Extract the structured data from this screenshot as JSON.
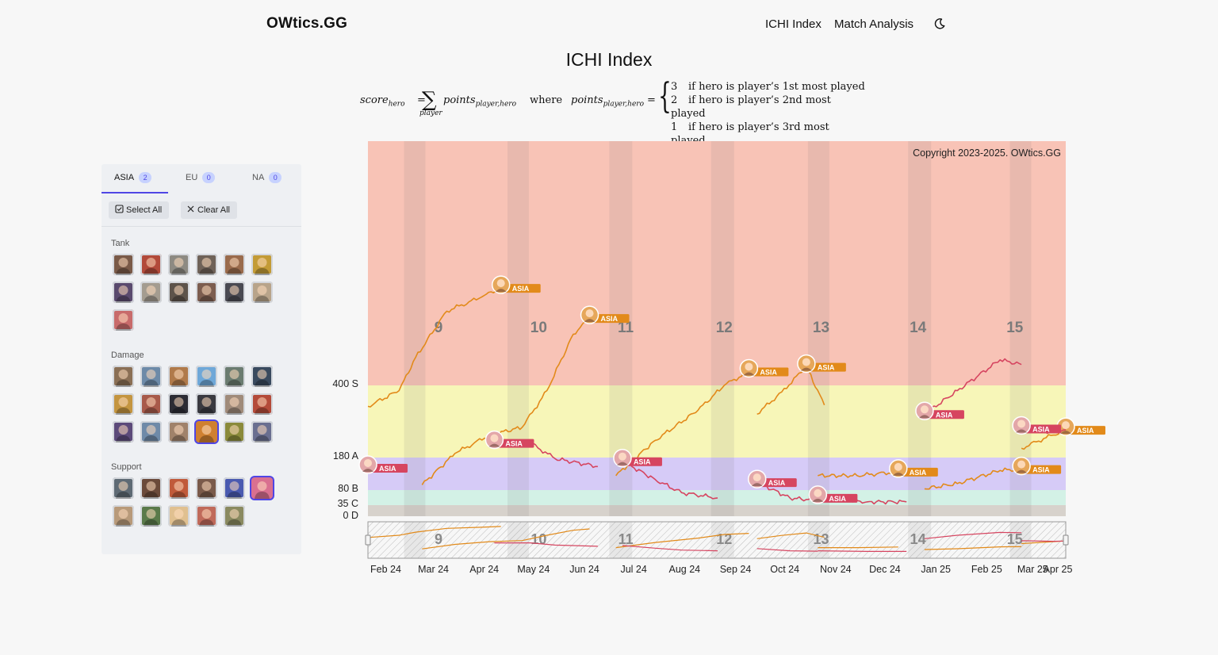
{
  "header": {
    "brand": "OWtics.GG",
    "nav": [
      "ICHI Index",
      "Match Analysis"
    ],
    "theme_icon": "moon-icon"
  },
  "page": {
    "title": "ICHI Index"
  },
  "formula": {
    "lhs": "score",
    "lhs_sub": "hero",
    "sigma_sub": "player",
    "term": "points",
    "term_sub": "player,hero",
    "where": "where",
    "cases": [
      {
        "value": "3",
        "condition": "if hero is player’s 1st most played"
      },
      {
        "value": "2",
        "condition": "if hero is player’s 2nd most played"
      },
      {
        "value": "1",
        "condition": "if hero is player’s 3rd most played"
      }
    ]
  },
  "sidebar": {
    "tabs": [
      {
        "label": "ASIA",
        "count": "2",
        "active": true
      },
      {
        "label": "EU",
        "count": "0",
        "active": false
      },
      {
        "label": "NA",
        "count": "0",
        "active": false
      }
    ],
    "select_all": "Select All",
    "clear_all": "Clear All",
    "roles": [
      {
        "name": "Tank",
        "count": 13,
        "selected": []
      },
      {
        "name": "Damage",
        "count": 18,
        "selected": [
          15
        ]
      },
      {
        "name": "Support",
        "count": 11,
        "selected": [
          5
        ]
      }
    ]
  },
  "chart_data": {
    "type": "line",
    "copyright": "Copyright 2023-2025. OWtics.GG",
    "tier_labels": [
      "400 S",
      "180 A",
      "80 B",
      "35 C",
      "0 D"
    ],
    "tier_colors": {
      "S": "#f8c3b6",
      "A": "#f7f6b8",
      "B": "#d6cbf7",
      "C": "#d3f1e6",
      "D": "#d7d2cc"
    },
    "season_labels": [
      "9",
      "10",
      "11",
      "12",
      "13",
      "14",
      "15"
    ],
    "x_tick_labels": [
      "Feb 24",
      "Mar 24",
      "Apr 24",
      "May 24",
      "Jun 24",
      "Jul 24",
      "Aug 24",
      "Sep 24",
      "Oct 24",
      "Nov 24",
      "Dec 24",
      "Jan 25",
      "Feb 25",
      "Mar 25",
      "Apr 25"
    ],
    "x_range": [
      "2024-02-01",
      "2025-04-01"
    ],
    "series": [
      {
        "color": "#e28a1a",
        "label_badge": "ASIA",
        "segments": [
          [
            [
              "2024-02-01",
              0.84
            ],
            [
              "2024-02-20",
              0.96
            ],
            [
              "2024-03-01",
              1.12
            ],
            [
              "2024-03-20",
              1.32
            ],
            [
              "2024-04-10",
              1.38
            ],
            [
              "2024-04-22",
              1.42
            ]
          ],
          [
            [
              "2024-03-05",
              0.24
            ],
            [
              "2024-03-25",
              0.48
            ],
            [
              "2024-04-15",
              0.62
            ],
            [
              "2024-05-05",
              0.68
            ],
            [
              "2024-05-20",
              0.96
            ],
            [
              "2024-06-05",
              1.22
            ],
            [
              "2024-06-15",
              1.29
            ]
          ],
          [
            [
              "2024-07-01",
              0.31
            ],
            [
              "2024-07-25",
              0.58
            ],
            [
              "2024-08-20",
              0.81
            ],
            [
              "2024-09-05",
              1.0
            ],
            [
              "2024-09-20",
              1.06
            ]
          ],
          [
            [
              "2024-09-25",
              0.78
            ],
            [
              "2024-10-10",
              0.95
            ],
            [
              "2024-10-25",
              1.08
            ],
            [
              "2024-11-05",
              0.85
            ]
          ],
          [
            [
              "2024-11-01",
              0.31
            ],
            [
              "2024-11-25",
              0.31
            ],
            [
              "2024-12-20",
              0.34
            ]
          ],
          [
            [
              "2025-01-05",
              0.21
            ],
            [
              "2025-01-25",
              0.25
            ],
            [
              "2025-02-20",
              0.35
            ],
            [
              "2025-03-05",
              0.36
            ]
          ],
          [
            [
              "2025-03-05",
              0.52
            ],
            [
              "2025-03-20",
              0.6
            ],
            [
              "2025-04-01",
              0.66
            ]
          ]
        ]
      },
      {
        "color": "#d64560",
        "label_badge": "ASIA",
        "segments": [
          [
            [
              "2024-02-01",
              0.37
            ]
          ],
          [
            [
              "2024-04-18",
              0.56
            ],
            [
              "2024-05-10",
              0.56
            ],
            [
              "2024-05-25",
              0.44
            ],
            [
              "2024-06-20",
              0.38
            ]
          ],
          [
            [
              "2024-07-05",
              0.42
            ],
            [
              "2024-07-25",
              0.28
            ],
            [
              "2024-08-10",
              0.18
            ],
            [
              "2024-09-01",
              0.14
            ]
          ],
          [
            [
              "2024-09-25",
              0.26
            ],
            [
              "2024-10-15",
              0.14
            ],
            [
              "2024-11-01",
              0.12
            ]
          ],
          [
            [
              "2024-11-01",
              0.14
            ],
            [
              "2024-12-01",
              0.11
            ],
            [
              "2024-12-25",
              0.11
            ]
          ],
          [
            [
              "2025-01-05",
              0.78
            ],
            [
              "2025-01-25",
              0.96
            ],
            [
              "2025-02-20",
              1.11
            ],
            [
              "2025-03-05",
              1.09
            ]
          ],
          [
            [
              "2025-03-05",
              0.67
            ],
            [
              "2025-03-25",
              0.64
            ],
            [
              "2025-04-01",
              0.66
            ]
          ]
        ]
      }
    ],
    "annotations": [
      "ASIA"
    ],
    "legend": "none"
  }
}
